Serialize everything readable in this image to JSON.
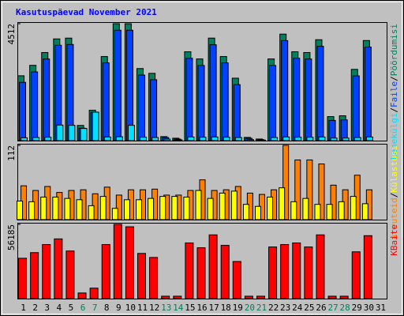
{
  "chart_data": {
    "type": "bar",
    "title": "Kasutuspäevad November 2021",
    "categories": [
      "1",
      "2",
      "3",
      "4",
      "5",
      "6",
      "7",
      "8",
      "9",
      "10",
      "11",
      "12",
      "13",
      "14",
      "15",
      "16",
      "17",
      "18",
      "19",
      "20",
      "21",
      "22",
      "23",
      "24",
      "25",
      "26",
      "27",
      "28",
      "29",
      "30",
      "31"
    ],
    "category_colors": [
      "#000000",
      "#000000",
      "#000000",
      "#000000",
      "#000000",
      "#00805c",
      "#00805c",
      "#000000",
      "#000000",
      "#000000",
      "#000000",
      "#000000",
      "#00805c",
      "#00805c",
      "#000000",
      "#000000",
      "#000000",
      "#000000",
      "#000000",
      "#00805c",
      "#00805c",
      "#000000",
      "#000000",
      "#000000",
      "#000000",
      "#000000",
      "#00805c",
      "#00805c",
      "#000000",
      "#000000",
      "#000000"
    ],
    "label_separator": "/",
    "panels": [
      {
        "ylim": [
          0,
          4512
        ],
        "yticks": [
          4512
        ],
        "series": [
          {
            "name": "Pöördumisi",
            "color": "#00805c",
            "values": [
              2503,
              2905,
              3400,
              3925,
              3956,
              587,
              1174,
              3245,
              4512,
              4512,
              2781,
              2596,
              155,
              93,
              3430,
              3152,
              3956,
              3245,
              2410,
              124,
              62,
              3152,
              4110,
              3430,
              3400,
              3894,
              927,
              958,
              2750,
              3863,
              null
            ]
          },
          {
            "name": "Faile",
            "color": "#0040ff",
            "values": [
              2250,
              2650,
              3150,
              3680,
              3710,
              480,
              1100,
              3000,
              4260,
              4260,
              2530,
              2350,
              120,
              60,
              3180,
              2900,
              3700,
              3000,
              2160,
              90,
              40,
              2900,
              3860,
              3180,
              3150,
              3640,
              780,
              800,
              2500,
              3610,
              null
            ]
          },
          {
            "name": "Lehekülgi",
            "color": "#00e0ff",
            "values": [
              110,
              120,
              130,
              600,
              590,
              470,
              1100,
              140,
              150,
              590,
              130,
              120,
              60,
              30,
              140,
              130,
              140,
              130,
              120,
              40,
              20,
              120,
              140,
              130,
              130,
              140,
              100,
              100,
              120,
              140,
              null
            ]
          }
        ]
      },
      {
        "ylim": [
          0,
          112
        ],
        "yticks": [
          112
        ],
        "series": [
          {
            "name": "Külastusi",
            "color": "#ffff00",
            "values": [
              28,
              27,
              34,
              34,
              32,
              30,
              21,
              35,
              17,
              30,
              30,
              32,
              35,
              35,
              34,
              44,
              32,
              40,
              43,
              23,
              20,
              34,
              48,
              27,
              32,
              23,
              23,
              27,
              35,
              24,
              null
            ]
          },
          {
            "name": "Arvuteid",
            "color": "#ff8000",
            "values": [
              51,
              44,
              50,
              41,
              44,
              45,
              39,
              49,
              37,
              45,
              45,
              46,
              37,
              37,
              44,
              60,
              44,
              45,
              50,
              40,
              38,
              45,
              112,
              90,
              90,
              84,
              52,
              45,
              67,
              45,
              null
            ]
          }
        ]
      },
      {
        "ylim": [
          0,
          56185
        ],
        "yticks": [
          56185
        ],
        "series": [
          {
            "name": "KBaite",
            "color": "#ff0000",
            "values": [
              30535,
              34810,
              40920,
              45193,
              36030,
              4275,
              7940,
              40920,
              56185,
              54353,
              34200,
              31146,
              1832,
              1832,
              42139,
              38475,
              48246,
              40307,
              28092,
              1832,
              1832,
              39085,
              40920,
              42139,
              39085,
              48246,
              1832,
              1832,
              35421,
              47635,
              null
            ]
          }
        ]
      }
    ]
  }
}
